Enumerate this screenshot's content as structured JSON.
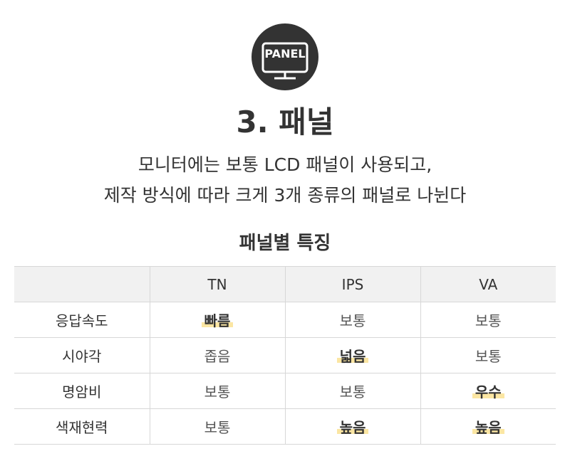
{
  "badge": {
    "text": "PANEL",
    "icon": "monitor-icon"
  },
  "title": "3. 패널",
  "description": [
    "모니터에는 보통 LCD 패널이 사용되고,",
    "제작 방식에 따라 크게 3개 종류의 패널로 나뉜다"
  ],
  "table": {
    "title": "패널별 특징",
    "headers": [
      "",
      "TN",
      "IPS",
      "VA"
    ],
    "rows": [
      {
        "label": "응답속도",
        "cells": [
          {
            "text": "빠름",
            "highlight": true
          },
          {
            "text": "보통",
            "highlight": false
          },
          {
            "text": "보통",
            "highlight": false
          }
        ]
      },
      {
        "label": "시야각",
        "cells": [
          {
            "text": "좁음",
            "highlight": false
          },
          {
            "text": "넓음",
            "highlight": true
          },
          {
            "text": "보통",
            "highlight": false
          }
        ]
      },
      {
        "label": "명암비",
        "cells": [
          {
            "text": "보통",
            "highlight": false
          },
          {
            "text": "보통",
            "highlight": false
          },
          {
            "text": "우수",
            "highlight": true
          }
        ]
      },
      {
        "label": "색재현력",
        "cells": [
          {
            "text": "보통",
            "highlight": false
          },
          {
            "text": "높음",
            "highlight": true
          },
          {
            "text": "높음",
            "highlight": true
          }
        ]
      }
    ]
  },
  "colors": {
    "text": "#333333",
    "header_bg": "#f1f1f1",
    "border": "#d7d7d7",
    "highlight": "#fbe6a3"
  }
}
